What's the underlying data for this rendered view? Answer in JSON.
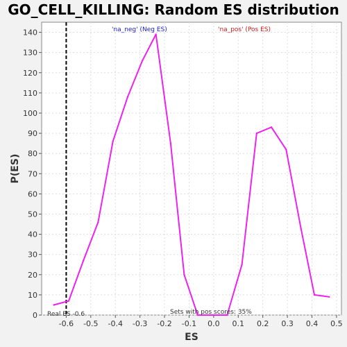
{
  "chart_data": {
    "type": "line",
    "title": "GO_CELL_KILLING: Random ES distribution",
    "xlabel": "ES",
    "ylabel": "P(ES)",
    "xlim": [
      -0.7,
      0.52
    ],
    "ylim": [
      0,
      145
    ],
    "x_ticks": [
      -0.6,
      -0.5,
      -0.4,
      -0.3,
      -0.2,
      -0.1,
      0.0,
      0.1,
      0.2,
      0.3,
      0.4,
      0.5
    ],
    "y_ticks": [
      0,
      10,
      20,
      30,
      40,
      50,
      60,
      70,
      80,
      90,
      100,
      110,
      120,
      130,
      140
    ],
    "grid": true,
    "series": [
      {
        "color": "#ee22ee",
        "x": [
          -0.65,
          -0.59,
          -0.53,
          -0.47,
          -0.41,
          -0.35,
          -0.29,
          -0.235,
          -0.175,
          -0.12,
          -0.065,
          -0.005,
          0.055,
          0.115,
          0.175,
          0.235,
          0.295,
          0.355,
          0.41,
          0.47
        ],
        "y": [
          5,
          7,
          27,
          46,
          86,
          108,
          126,
          139,
          85,
          20,
          0,
          0,
          0,
          25,
          90,
          93,
          82,
          43,
          10,
          9
        ]
      }
    ],
    "real_es": {
      "x": -0.6,
      "label": "Real ES -0.6"
    },
    "annotations": {
      "neg": "'na_neg' (Neg ES)",
      "pos": "'na_pos' (Pos ES)",
      "pos_scores": "Sets with pos scores: 35%"
    }
  }
}
